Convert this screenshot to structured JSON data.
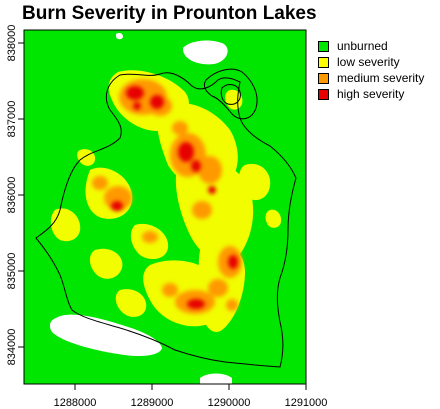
{
  "title": "Burn Severity in Prounton Lakes",
  "legend": [
    {
      "label": "unburned",
      "color": "#00e600"
    },
    {
      "label": "low severity",
      "color": "#ffff00"
    },
    {
      "label": "medium severity",
      "color": "#ff9900"
    },
    {
      "label": "high severity",
      "color": "#e60000"
    }
  ],
  "colors": {
    "lakes": "#ffffff",
    "boundary": "#000000"
  },
  "x_axis": {
    "ticks": [
      "1288000",
      "1289000",
      "1290000",
      "1291000"
    ]
  },
  "y_axis": {
    "ticks": [
      "834000",
      "835000",
      "836000",
      "837000",
      "838000"
    ]
  }
}
